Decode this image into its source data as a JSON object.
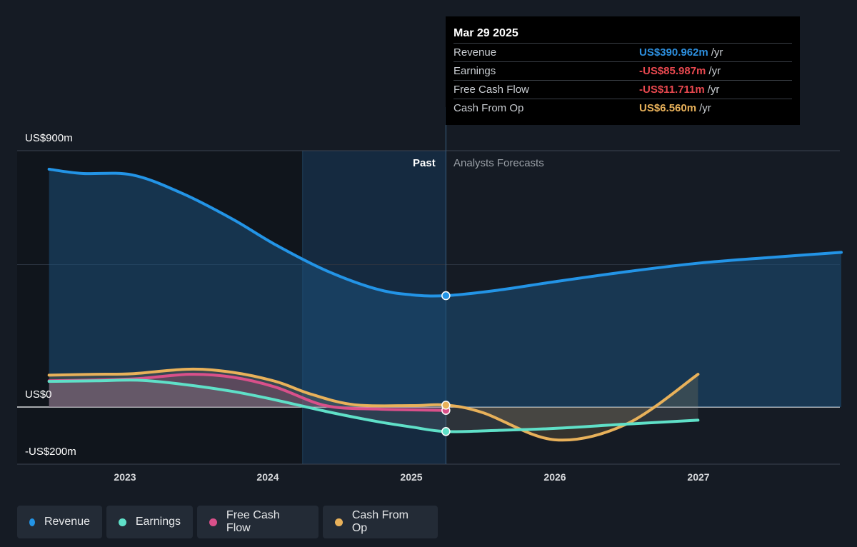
{
  "tooltip": {
    "date": "Mar 29 2025",
    "rows": [
      {
        "label": "Revenue",
        "value": "US$390.962m",
        "unit": "/yr",
        "color": "#2d8fde"
      },
      {
        "label": "Earnings",
        "value": "-US$85.987m",
        "unit": "/yr",
        "color": "#e8484f"
      },
      {
        "label": "Free Cash Flow",
        "value": "-US$11.711m",
        "unit": "/yr",
        "color": "#e8484f"
      },
      {
        "label": "Cash From Op",
        "value": "US$6.560m",
        "unit": "/yr",
        "color": "#e8b15a"
      }
    ]
  },
  "legend": [
    {
      "label": "Revenue",
      "color": "#2394e6"
    },
    {
      "label": "Earnings",
      "color": "#5fe0c8"
    },
    {
      "label": "Free Cash Flow",
      "color": "#d9508a"
    },
    {
      "label": "Cash From Op",
      "color": "#e8b15a"
    }
  ],
  "chart_data": {
    "type": "line",
    "y_tick_labels": [
      "US$900m",
      "US$0",
      "-US$200m"
    ],
    "ylim": [
      -200,
      900
    ],
    "x_tick_labels": [
      "2023",
      "2024",
      "2025",
      "2026",
      "2027"
    ],
    "past_label": "Past",
    "forecast_label": "Analysts Forecasts",
    "series": [
      {
        "name": "Revenue",
        "color": "#2394e6",
        "x": [
          2022.47,
          2022.7,
          2023.05,
          2023.4,
          2023.75,
          2024.05,
          2024.4,
          2024.75,
          2025.0,
          2025.24,
          2025.6,
          2026.0,
          2026.5,
          2027.0,
          2027.5,
          2028.0
        ],
        "y": [
          835,
          820,
          815,
          750,
          660,
          570,
          480,
          415,
          394,
          391,
          410,
          440,
          475,
          505,
          525,
          543
        ]
      },
      {
        "name": "Earnings",
        "color": "#5fe0c8",
        "x": [
          2022.47,
          2022.8,
          2023.1,
          2023.4,
          2023.75,
          2024.05,
          2024.4,
          2024.75,
          2025.0,
          2025.24,
          2025.6,
          2026.0,
          2026.5,
          2027.0
        ],
        "y": [
          90,
          92,
          94,
          80,
          55,
          25,
          -15,
          -50,
          -70,
          -86,
          -82,
          -75,
          -60,
          -46
        ]
      },
      {
        "name": "Free Cash Flow",
        "color": "#d9508a",
        "x": [
          2022.47,
          2022.8,
          2023.1,
          2023.45,
          2023.75,
          2024.05,
          2024.4,
          2024.75,
          2025.0,
          2025.24
        ],
        "y": [
          92,
          95,
          100,
          115,
          105,
          70,
          5,
          -7,
          -10,
          -12
        ]
      },
      {
        "name": "Cash From Op",
        "color": "#e8b15a",
        "x": [
          2022.47,
          2022.8,
          2023.05,
          2023.45,
          2023.75,
          2024.05,
          2024.3,
          2024.6,
          2025.0,
          2025.24,
          2025.5,
          2026.0,
          2026.5,
          2027.0
        ],
        "y": [
          112,
          115,
          117,
          133,
          122,
          90,
          45,
          8,
          5,
          7,
          -20,
          -115,
          -60,
          115
        ]
      }
    ]
  }
}
